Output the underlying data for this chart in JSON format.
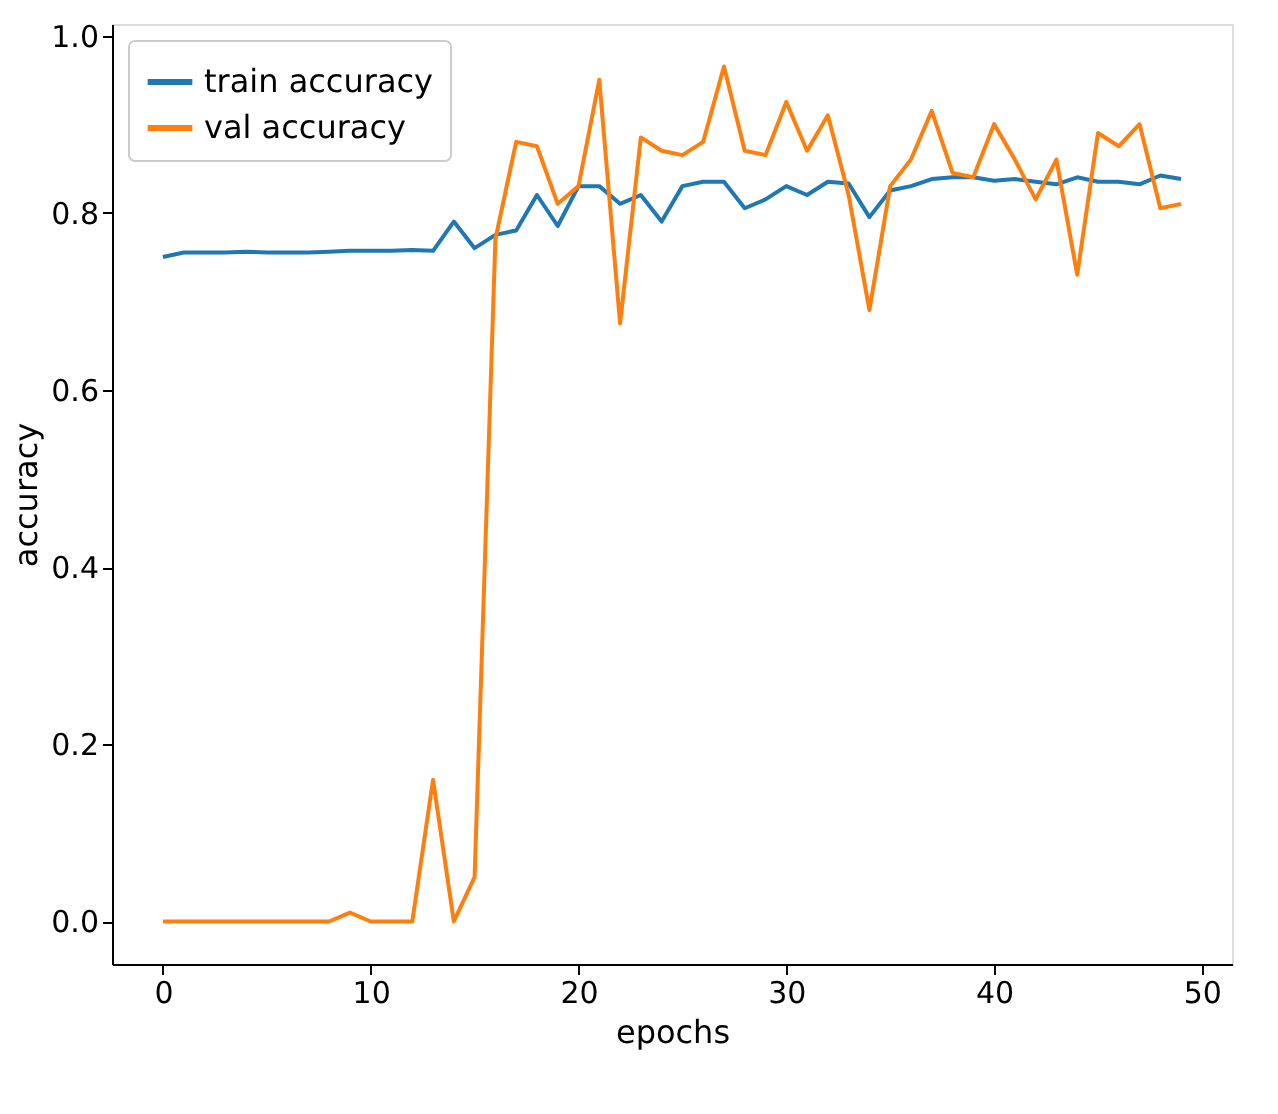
{
  "chart_data": {
    "type": "line",
    "xlabel": "epochs",
    "ylabel": "accuracy",
    "x": [
      0,
      1,
      2,
      3,
      4,
      5,
      6,
      7,
      8,
      9,
      10,
      11,
      12,
      13,
      14,
      15,
      16,
      17,
      18,
      19,
      20,
      21,
      22,
      23,
      24,
      25,
      26,
      27,
      28,
      29,
      30,
      31,
      32,
      33,
      34,
      35,
      36,
      37,
      38,
      39,
      40,
      41,
      42,
      43,
      44,
      45,
      46,
      47,
      48,
      49
    ],
    "series": [
      {
        "name": "train accuracy",
        "color": "#1f77b4",
        "values": [
          0.75,
          0.755,
          0.755,
          0.755,
          0.756,
          0.755,
          0.755,
          0.755,
          0.756,
          0.757,
          0.757,
          0.757,
          0.758,
          0.757,
          0.79,
          0.76,
          0.775,
          0.78,
          0.82,
          0.785,
          0.83,
          0.83,
          0.81,
          0.82,
          0.79,
          0.83,
          0.835,
          0.835,
          0.805,
          0.815,
          0.83,
          0.82,
          0.835,
          0.833,
          0.795,
          0.825,
          0.83,
          0.838,
          0.84,
          0.84,
          0.836,
          0.838,
          0.835,
          0.832,
          0.84,
          0.835,
          0.835,
          0.832,
          0.842,
          0.838
        ]
      },
      {
        "name": "val accuracy",
        "color": "#ff7f0e",
        "values": [
          0,
          0,
          0,
          0,
          0,
          0,
          0,
          0,
          0,
          0.01,
          0,
          0,
          0,
          0.16,
          0,
          0.05,
          0.77,
          0.88,
          0.875,
          0.81,
          0.83,
          0.95,
          0.675,
          0.885,
          0.87,
          0.865,
          0.88,
          0.965,
          0.87,
          0.865,
          0.925,
          0.87,
          0.91,
          0.82,
          0.69,
          0.83,
          0.86,
          0.915,
          0.845,
          0.84,
          0.9,
          0.86,
          0.815,
          0.86,
          0.73,
          0.89,
          0.875,
          0.9,
          0.805,
          0.81
        ]
      }
    ],
    "xlim": [
      -2.45,
      51.45
    ],
    "ylim": [
      -0.048,
      1.013
    ],
    "xticks": [
      0,
      10,
      20,
      30,
      40,
      50
    ],
    "yticks": [
      {
        "value": 0,
        "label": "0.0"
      },
      {
        "value": 0.2,
        "label": "0.2"
      },
      {
        "value": 0.4,
        "label": "0.4"
      },
      {
        "value": 0.6,
        "label": "0.6"
      },
      {
        "value": 0.8,
        "label": "0.8"
      },
      {
        "value": 1.0,
        "label": "1.0"
      }
    ],
    "grid": false,
    "legend": "top left",
    "marker": "none",
    "line_style": "solid"
  }
}
